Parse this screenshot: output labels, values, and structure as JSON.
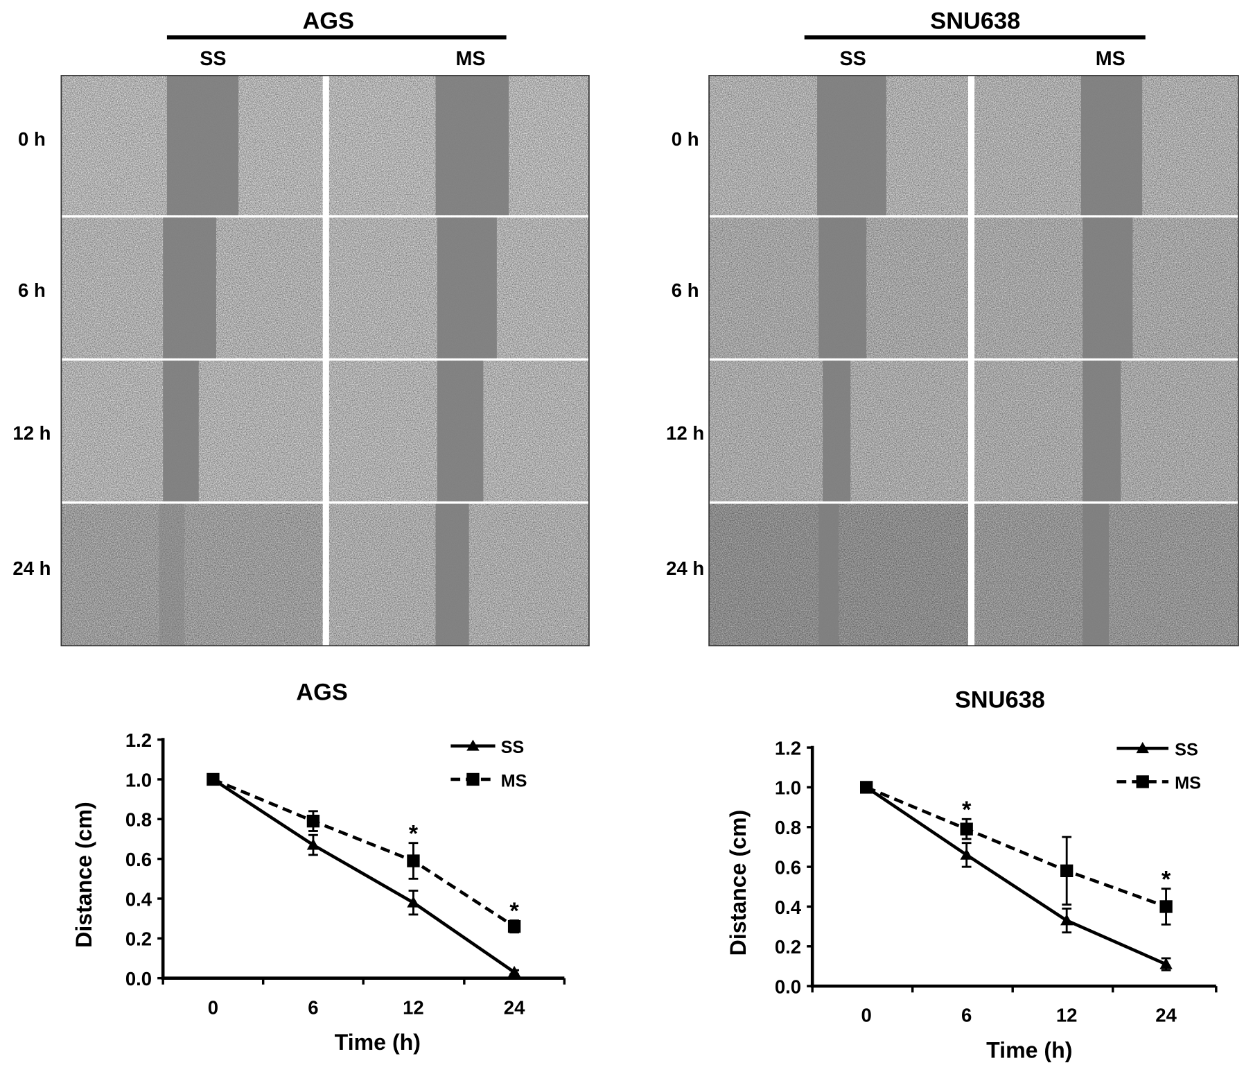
{
  "micrographs": [
    {
      "cell_line": "AGS",
      "columns": [
        "SS",
        "MS"
      ],
      "rows": [
        "0 h",
        "6 h",
        "12 h",
        "24 h"
      ]
    },
    {
      "cell_line": "SNU638",
      "columns": [
        "SS",
        "MS"
      ],
      "rows": [
        "0 h",
        "6 h",
        "12 h",
        "24 h"
      ]
    }
  ],
  "chart_data": [
    {
      "type": "line",
      "title": "AGS",
      "xlabel": "Time (h)",
      "ylabel": "Distance (cm)",
      "categories": [
        "0",
        "6",
        "12",
        "24"
      ],
      "ylim": [
        0,
        1.2
      ],
      "yticks": [
        "0.0",
        "0.2",
        "0.4",
        "0.6",
        "0.8",
        "1.0",
        "1.2"
      ],
      "legend": "top-right",
      "grid": false,
      "series": [
        {
          "name": "SS",
          "values": [
            1.0,
            0.67,
            0.38,
            0.03
          ],
          "errors": [
            0.01,
            0.05,
            0.06,
            0.01
          ],
          "line_style": "solid",
          "marker": "triangle"
        },
        {
          "name": "MS",
          "values": [
            1.0,
            0.79,
            0.59,
            0.26
          ],
          "errors": [
            0.02,
            0.05,
            0.09,
            0.03
          ],
          "line_style": "dashed",
          "marker": "square"
        }
      ],
      "significance": [
        {
          "category": "12",
          "label": "*"
        },
        {
          "category": "24",
          "label": "*"
        }
      ]
    },
    {
      "type": "line",
      "title": "SNU638",
      "xlabel": "Time (h)",
      "ylabel": "Distance (cm)",
      "categories": [
        "0",
        "6",
        "12",
        "24"
      ],
      "ylim": [
        0,
        1.2
      ],
      "yticks": [
        "0.0",
        "0.2",
        "0.4",
        "0.6",
        "0.8",
        "1.0",
        "1.2"
      ],
      "legend": "top-right",
      "grid": false,
      "series": [
        {
          "name": "SS",
          "values": [
            1.0,
            0.66,
            0.33,
            0.11
          ],
          "errors": [
            0.01,
            0.06,
            0.06,
            0.03
          ],
          "line_style": "solid",
          "marker": "triangle"
        },
        {
          "name": "MS",
          "values": [
            1.0,
            0.79,
            0.58,
            0.4
          ],
          "errors": [
            0.02,
            0.05,
            0.17,
            0.09
          ],
          "line_style": "dashed",
          "marker": "square"
        }
      ],
      "significance": [
        {
          "category": "6",
          "label": "*"
        },
        {
          "category": "24",
          "label": "*"
        }
      ]
    }
  ]
}
